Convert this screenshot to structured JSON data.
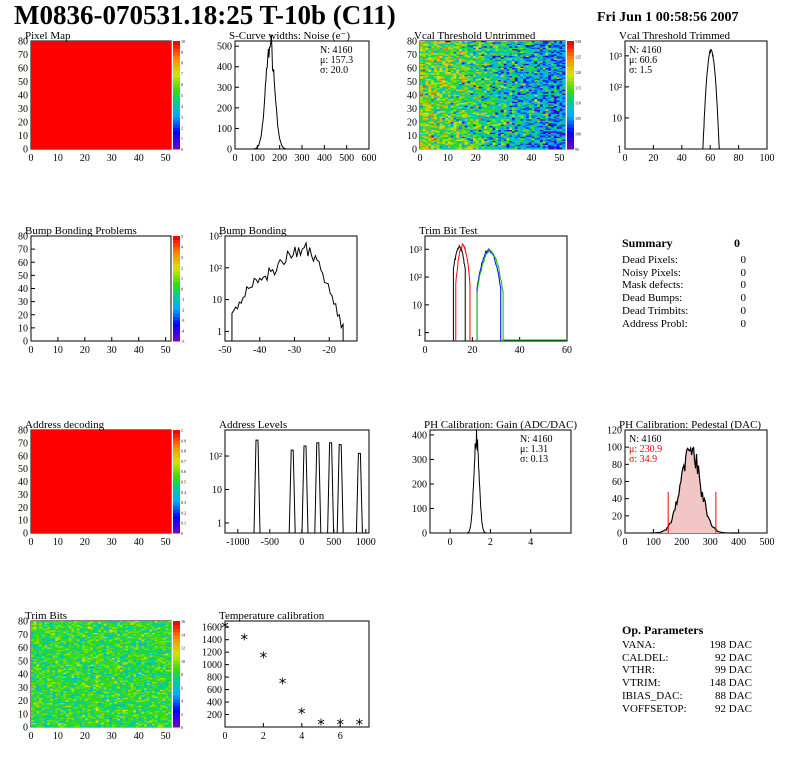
{
  "title": "M0836-070531.18:25 T-10b (C11)",
  "date": "Fri Jun  1 00:58:56 2007",
  "colors": {
    "red": "#ff0000",
    "green": "#00c000",
    "blue": "#0000ff"
  },
  "chart_data": [
    {
      "id": "pixelmap",
      "type": "heatmap",
      "title": "Pixel Map",
      "xlim": [
        0,
        52
      ],
      "ylim": [
        0,
        80
      ],
      "xticks": [
        "0",
        "10",
        "20",
        "30",
        "40",
        "50"
      ],
      "yticks": [
        "0",
        "10",
        "20",
        "30",
        "40",
        "50",
        "60",
        "70",
        "80"
      ],
      "zlim": [
        0,
        10
      ],
      "zticks": [
        "0",
        "1",
        "2",
        "3",
        "4",
        "5",
        "6",
        "7",
        "8",
        "9",
        "10"
      ],
      "fill": "uniform",
      "value": 10
    },
    {
      "id": "scurve",
      "type": "histogram",
      "title": "S-Curve widths: Noise (e⁻)",
      "xlim": [
        0,
        600
      ],
      "ylim": [
        0,
        525
      ],
      "xticks": [
        "0",
        "100",
        "200",
        "300",
        "400",
        "500",
        "600"
      ],
      "yticks": [
        "0",
        "100",
        "200",
        "300",
        "400",
        "500"
      ],
      "stats": {
        "N": "N: 4160",
        "mu": "μ: 157.3",
        "sigma": "σ: 20.0"
      },
      "gauss": {
        "mean": 157.3,
        "sigma": 20.0,
        "peak": 510
      }
    },
    {
      "id": "vcalun",
      "type": "heatmap",
      "title": "Vcal Threshold Untrimmed",
      "xlim": [
        0,
        52
      ],
      "ylim": [
        0,
        80
      ],
      "xticks": [
        "0",
        "10",
        "20",
        "30",
        "40",
        "50"
      ],
      "yticks": [
        "0",
        "10",
        "20",
        "30",
        "40",
        "50",
        "60",
        "70",
        "80"
      ],
      "zlim": [
        94,
        130
      ],
      "zticks": [
        "95",
        "100",
        "105",
        "110",
        "115",
        "120",
        "125",
        "130"
      ],
      "fill": "noisy-gradient"
    },
    {
      "id": "vcaltr",
      "type": "histogram",
      "title": "Vcal Threshold Trimmed",
      "xlim": [
        0,
        100
      ],
      "ylim": [
        1,
        3000
      ],
      "logy": true,
      "xticks": [
        "0",
        "20",
        "40",
        "60",
        "80",
        "100"
      ],
      "yticks": [
        "1",
        "10",
        "10²",
        "10³"
      ],
      "stats": {
        "N": "N: 4160",
        "mu": "μ: 60.6",
        "sigma": "σ:  1.5"
      },
      "gauss": {
        "mean": 60.6,
        "sigma": 1.5,
        "peak": 1500
      }
    },
    {
      "id": "bumpmap",
      "type": "heatmap",
      "title": "Bump Bonding Problems",
      "xlim": [
        0,
        52
      ],
      "ylim": [
        0,
        80
      ],
      "xticks": [
        "0",
        "10",
        "20",
        "30",
        "40",
        "50"
      ],
      "yticks": [
        "0",
        "10",
        "20",
        "30",
        "40",
        "50",
        "60",
        "70",
        "80"
      ],
      "zlim": [
        -5,
        5
      ],
      "zticks": [
        "-5",
        "-4",
        "-3",
        "-2",
        "-1",
        "0",
        "1",
        "2",
        "3",
        "4",
        "5"
      ],
      "fill": "empty"
    },
    {
      "id": "bump",
      "type": "histogram",
      "title": "Bump Bonding",
      "xlim": [
        -50,
        -12
      ],
      "ylim": [
        0.5,
        1000
      ],
      "logy": true,
      "xticks": [
        "-50",
        "-40",
        "-30",
        "-20"
      ],
      "yticks": [
        "1",
        "10",
        "10²",
        "10³"
      ],
      "shape": {
        "from": -48,
        "peak": -27,
        "to": -16,
        "peakval": 400
      }
    },
    {
      "id": "trimbit",
      "type": "histogram",
      "title": "Trim Bit Test",
      "xlim": [
        0,
        60
      ],
      "ylim": [
        0.5,
        3000
      ],
      "logy": true,
      "xticks": [
        "0",
        "20",
        "40",
        "60"
      ],
      "yticks": [
        "1",
        "10",
        "10²",
        "10³"
      ],
      "series": [
        {
          "color": "black",
          "mean": 14.5,
          "sigma": 1.3,
          "peak": 1200,
          "base": [
            12,
            17
          ]
        },
        {
          "color": "red",
          "mean": 16,
          "sigma": 1.2,
          "peak": 1400,
          "base": [
            13,
            19
          ]
        },
        {
          "color": "blue",
          "mean": 27,
          "sigma": 2,
          "peak": 900,
          "base": [
            22,
            32
          ]
        },
        {
          "color": "green",
          "mean": 27.5,
          "sigma": 2.1,
          "peak": 900,
          "base": [
            22,
            33
          ]
        }
      ]
    },
    {
      "id": "addrmap",
      "type": "heatmap",
      "title": "Address decoding",
      "xlim": [
        0,
        52
      ],
      "ylim": [
        0,
        80
      ],
      "xticks": [
        "0",
        "10",
        "20",
        "30",
        "40",
        "50"
      ],
      "yticks": [
        "0",
        "10",
        "20",
        "30",
        "40",
        "50",
        "60",
        "70",
        "80"
      ],
      "zlim": [
        0,
        1
      ],
      "zticks": [
        "0",
        "0.1",
        "0.2",
        "0.3",
        "0.4",
        "0.5",
        "0.6",
        "0.7",
        "0.8",
        "0.9",
        "1"
      ],
      "fill": "uniform",
      "value": 1
    },
    {
      "id": "addrlev",
      "type": "histogram",
      "title": "Address Levels",
      "xlim": [
        -1200,
        1050
      ],
      "ylim": [
        0.5,
        600
      ],
      "logy": true,
      "xticks": [
        "-1000",
        "-500",
        "0",
        "500",
        "1000"
      ],
      "yticks": [
        "1",
        "10",
        "10²"
      ],
      "peaks": [
        {
          "x": -700,
          "h": 300
        },
        {
          "x": -150,
          "h": 150
        },
        {
          "x": 50,
          "h": 200
        },
        {
          "x": 250,
          "h": 250
        },
        {
          "x": 450,
          "h": 250
        },
        {
          "x": 600,
          "h": 220
        },
        {
          "x": 900,
          "h": 120
        }
      ]
    },
    {
      "id": "phgain",
      "type": "histogram",
      "title": "PH Calibration: Gain (ADC/DAC)",
      "xlim": [
        -1,
        6
      ],
      "ylim": [
        0,
        420
      ],
      "xticks": [
        "0",
        "2",
        "4"
      ],
      "yticks": [
        "0",
        "100",
        "200",
        "300",
        "400"
      ],
      "stats": {
        "N": "N: 4160",
        "mu": "μ: 1.31",
        "sigma": "σ: 0.13"
      },
      "gauss": {
        "mean": 1.31,
        "sigma": 0.13,
        "peak": 380
      }
    },
    {
      "id": "phped",
      "type": "histogram",
      "title": "PH Calibration: Pedestal (DAC)",
      "xlim": [
        0,
        500
      ],
      "ylim": [
        0,
        120
      ],
      "xticks": [
        "0",
        "100",
        "200",
        "300",
        "400",
        "500"
      ],
      "yticks": [
        "0",
        "20",
        "40",
        "60",
        "80",
        "100",
        "120"
      ],
      "stats": {
        "N": "N: 4160",
        "mu": "μ: 230.9",
        "sigma": "σ: 34.9"
      },
      "gauss": {
        "mean": 230.9,
        "sigma": 34.9,
        "peak": 98
      },
      "cuts": [
        152,
        320
      ]
    },
    {
      "id": "trimbits",
      "type": "heatmap",
      "title": "Trim Bits",
      "xlim": [
        0,
        52
      ],
      "ylim": [
        0,
        80
      ],
      "xticks": [
        "0",
        "10",
        "20",
        "30",
        "40",
        "50"
      ],
      "yticks": [
        "0",
        "10",
        "20",
        "30",
        "40",
        "50",
        "60",
        "70",
        "80"
      ],
      "zlim": [
        0,
        16
      ],
      "zticks": [
        "0",
        "2",
        "4",
        "6",
        "8",
        "10",
        "12",
        "14",
        "16"
      ],
      "fill": "noisy-mid"
    },
    {
      "id": "temp",
      "type": "scatter",
      "title": "Temperature calibration",
      "xlim": [
        0,
        7.5
      ],
      "ylim": [
        0,
        1700
      ],
      "xticks": [
        "0",
        "2",
        "4",
        "6"
      ],
      "yticks": [
        "200",
        "400",
        "600",
        "800",
        "1000",
        "1200",
        "1400",
        "1600"
      ],
      "x": [
        0,
        1,
        2,
        3,
        4,
        5,
        6,
        7
      ],
      "y": [
        1610,
        1420,
        1130,
        710,
        230,
        60,
        60,
        60
      ]
    }
  ],
  "summary": {
    "title": "Summary",
    "total": "0",
    "rows": [
      {
        "label": "Dead Pixels:",
        "value": "0"
      },
      {
        "label": "Noisy Pixels:",
        "value": "0"
      },
      {
        "label": "Mask defects:",
        "value": "0"
      },
      {
        "label": "Dead Bumps:",
        "value": "0"
      },
      {
        "label": "Dead Trimbits:",
        "value": "0"
      },
      {
        "label": "Address Probl:",
        "value": "0"
      }
    ]
  },
  "params": {
    "title": "Op. Parameters",
    "rows": [
      {
        "label": "VANA:",
        "value": "198 DAC"
      },
      {
        "label": "CALDEL:",
        "value": "92 DAC"
      },
      {
        "label": "VTHR:",
        "value": "99 DAC"
      },
      {
        "label": "VTRIM:",
        "value": "148 DAC"
      },
      {
        "label": "IBIAS_DAC:",
        "value": "88 DAC"
      },
      {
        "label": "VOFFSETOP:",
        "value": "92 DAC"
      }
    ]
  }
}
